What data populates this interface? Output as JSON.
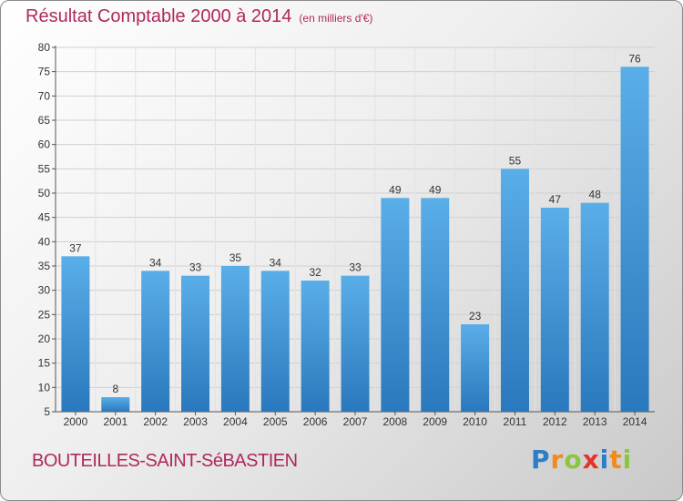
{
  "chart_data": {
    "type": "bar",
    "title": "Résultat Comptable 2000 à 2014",
    "subtitle": "(en milliers d'€)",
    "categories": [
      "2000",
      "2001",
      "2002",
      "2003",
      "2004",
      "2005",
      "2006",
      "2007",
      "2008",
      "2009",
      "2010",
      "2011",
      "2012",
      "2013",
      "2014"
    ],
    "values": [
      37,
      8,
      34,
      33,
      35,
      34,
      32,
      33,
      49,
      49,
      23,
      55,
      47,
      48,
      76
    ],
    "ylim": [
      5,
      80
    ],
    "yticks": [
      5,
      10,
      15,
      20,
      25,
      30,
      35,
      40,
      45,
      50,
      55,
      60,
      65,
      70,
      75,
      80
    ],
    "grid": true,
    "xlabel": "",
    "ylabel": ""
  },
  "commune": "BOUTEILLES-SAINT-SéBASTIEN",
  "logo": {
    "letters": [
      "P",
      "r",
      "o",
      "x",
      "i",
      "t",
      "i"
    ],
    "colors": [
      "#2a7fc7",
      "#f08a1c",
      "#8cc63f",
      "#e6332a",
      "#2a7fc7",
      "#f08a1c",
      "#8cc63f"
    ]
  },
  "colors": {
    "bar_top": "#5aaee8",
    "bar_bottom": "#2a78bd",
    "accent": "#b0285e"
  }
}
